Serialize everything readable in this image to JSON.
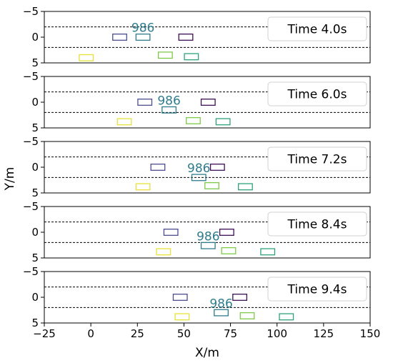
{
  "chart_data": {
    "type": "scatter",
    "xlabel": "X/m",
    "ylabel": "Y/m",
    "xlim": [
      -25,
      150
    ],
    "ylim": [
      5,
      -5
    ],
    "x_ticks": [
      -25,
      0,
      25,
      50,
      75,
      100,
      125,
      150
    ],
    "x_tick_labels": [
      "−25",
      "0",
      "25",
      "50",
      "75",
      "100",
      "125",
      "150"
    ],
    "y_ticks": [
      -5,
      0,
      5
    ],
    "y_tick_labels": [
      "−5",
      "0",
      "5"
    ],
    "lane_lines_y": [
      -2,
      2
    ],
    "vehicle_length_m": 7.5,
    "vehicle_width_m": 1.2,
    "tracked_id": "986",
    "tracked_color": "#2f7d8c",
    "panels": [
      {
        "time_label": "Time 4.0s",
        "vehicles": [
          {
            "x": -2.5,
            "y": 4.0,
            "color": "#e7e23a"
          },
          {
            "x": 15.5,
            "y": 0.0,
            "color": "#4e4e8f"
          },
          {
            "x": 28.0,
            "y": 0.0,
            "color": "#2f7d8c",
            "tracked": true
          },
          {
            "x": 40.0,
            "y": 3.5,
            "color": "#7fc94a"
          },
          {
            "x": 51.0,
            "y": 0.0,
            "color": "#3e0f55"
          },
          {
            "x": 54.0,
            "y": 3.8,
            "color": "#2ea27d"
          }
        ]
      },
      {
        "time_label": "Time 6.0s",
        "vehicles": [
          {
            "x": 18.0,
            "y": 3.8,
            "color": "#e7e23a"
          },
          {
            "x": 29.0,
            "y": 0.0,
            "color": "#4e4e8f"
          },
          {
            "x": 42.0,
            "y": 1.5,
            "color": "#2f7d8c",
            "tracked": true
          },
          {
            "x": 55.0,
            "y": 3.6,
            "color": "#7fc94a"
          },
          {
            "x": 63.0,
            "y": 0.0,
            "color": "#3e0f55"
          },
          {
            "x": 71.0,
            "y": 3.8,
            "color": "#2ea27d"
          }
        ]
      },
      {
        "time_label": "Time 7.2s",
        "vehicles": [
          {
            "x": 28.0,
            "y": 3.8,
            "color": "#e7e23a"
          },
          {
            "x": 36.0,
            "y": 0.0,
            "color": "#4e4e8f"
          },
          {
            "x": 58.0,
            "y": 2.0,
            "color": "#2f7d8c",
            "tracked": true
          },
          {
            "x": 65.0,
            "y": 3.6,
            "color": "#7fc94a"
          },
          {
            "x": 68.0,
            "y": 0.0,
            "color": "#3e0f55"
          },
          {
            "x": 83.0,
            "y": 3.8,
            "color": "#2ea27d"
          }
        ]
      },
      {
        "time_label": "Time 8.4s",
        "vehicles": [
          {
            "x": 39.0,
            "y": 3.8,
            "color": "#e7e23a"
          },
          {
            "x": 43.0,
            "y": 0.0,
            "color": "#4e4e8f"
          },
          {
            "x": 63.0,
            "y": 2.6,
            "color": "#2f7d8c",
            "tracked": true
          },
          {
            "x": 74.0,
            "y": 3.6,
            "color": "#7fc94a"
          },
          {
            "x": 73.0,
            "y": 0.0,
            "color": "#3e0f55"
          },
          {
            "x": 95.0,
            "y": 3.8,
            "color": "#2ea27d"
          }
        ]
      },
      {
        "time_label": "Time 9.4s",
        "vehicles": [
          {
            "x": 49.0,
            "y": 3.8,
            "color": "#e7e23a"
          },
          {
            "x": 48.0,
            "y": 0.0,
            "color": "#4e4e8f"
          },
          {
            "x": 70.0,
            "y": 3.0,
            "color": "#2f7d8c",
            "tracked": true
          },
          {
            "x": 84.0,
            "y": 3.6,
            "color": "#7fc94a"
          },
          {
            "x": 80.0,
            "y": 0.0,
            "color": "#3e0f55"
          },
          {
            "x": 105.0,
            "y": 3.8,
            "color": "#2ea27d"
          }
        ]
      }
    ]
  }
}
